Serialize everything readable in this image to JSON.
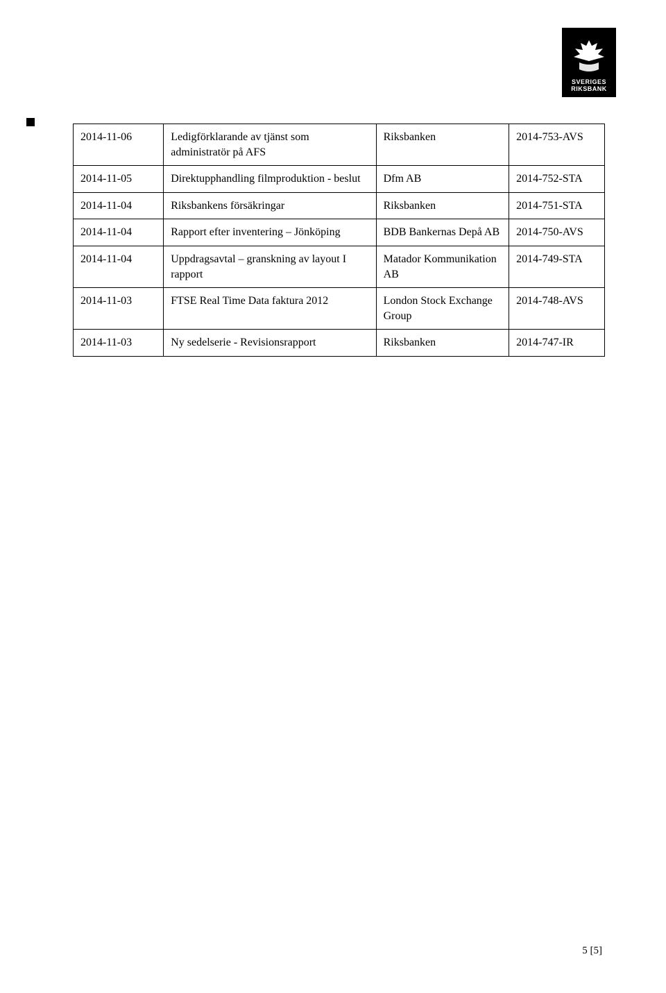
{
  "logo": {
    "line1": "SVERIGES",
    "line2": "RIKSBANK"
  },
  "page_number": "5 [5]",
  "table": {
    "column_widths_pct": [
      17,
      40,
      25,
      18
    ],
    "font_size_pt": 12,
    "border_color": "#000000",
    "rows": [
      {
        "c1": "2014-11-06",
        "c2": "Ledigförklarande av tjänst som administratör på AFS",
        "c3": "Riksbanken",
        "c4": "2014-753-AVS"
      },
      {
        "c1": "2014-11-05",
        "c2": "Direktupphandling filmproduktion - beslut",
        "c3": "Dfm AB",
        "c4": "2014-752-STA"
      },
      {
        "c1": "2014-11-04",
        "c2": "Riksbankens  försäkringar",
        "c3": "Riksbanken",
        "c4": "2014-751-STA"
      },
      {
        "c1": "2014-11-04",
        "c2": "Rapport efter inventering – Jönköping",
        "c3": "BDB Bankernas Depå AB",
        "c4": "2014-750-AVS"
      },
      {
        "c1": "2014-11-04",
        "c2": "Uppdragsavtal – granskning av layout I rapport",
        "c3": "Matador Kommunikation AB",
        "c4": "2014-749-STA"
      },
      {
        "c1": "2014-11-03",
        "c2": "FTSE Real Time Data faktura 2012",
        "c3": "London Stock Exchange Group",
        "c4": "2014-748-AVS"
      },
      {
        "c1": "2014-11-03",
        "c2": "Ny sedelserie - Revisionsrapport",
        "c3": "Riksbanken",
        "c4": "2014-747-IR"
      }
    ]
  }
}
